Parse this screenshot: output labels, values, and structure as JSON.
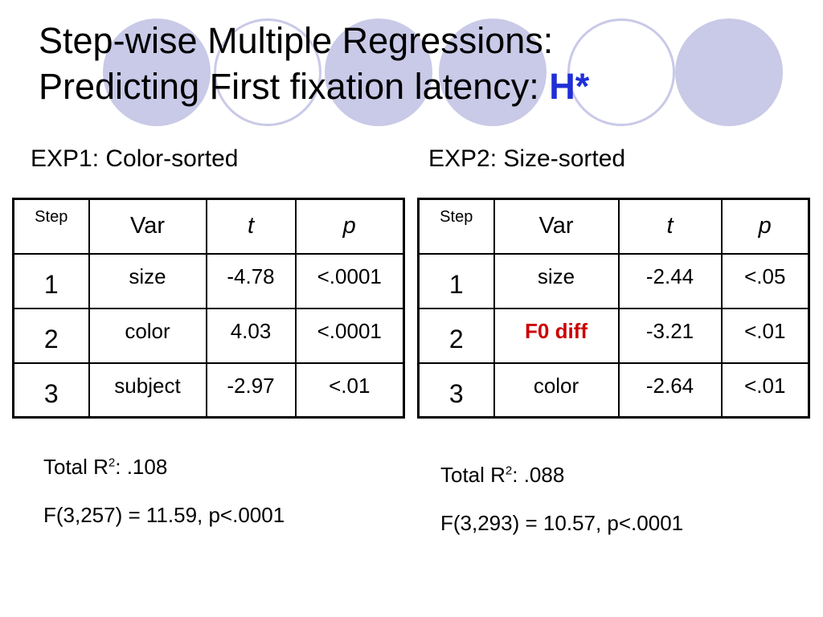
{
  "slide": {
    "title_line1": "Step-wise Multiple Regressions:",
    "title_line2": "Predicting First fixation latency: ",
    "title_accent": "H*"
  },
  "columns": {
    "step": "Step",
    "var": "Var",
    "t": "t",
    "p": "p"
  },
  "exp1": {
    "heading": "EXP1: Color-sorted",
    "rows": [
      {
        "step": "1",
        "var": "size",
        "t": "-4.78",
        "p": "<.0001"
      },
      {
        "step": "2",
        "var": "color",
        "t": "4.03",
        "p": "<.0001"
      },
      {
        "step": "3",
        "var": "subject",
        "t": "-2.97",
        "p": "<.01"
      }
    ],
    "r2_prefix": "Total R",
    "r2_sup": "2",
    "r2_suffix": ":  .108",
    "f_stat": "F(3,257) = 11.59, p<.0001"
  },
  "exp2": {
    "heading": "EXP2: Size-sorted",
    "rows": [
      {
        "step": "1",
        "var": "size",
        "t": "-2.44",
        "p": "<.05"
      },
      {
        "step": "2",
        "var": "F0 diff",
        "t": "-3.21",
        "p": "<.01"
      },
      {
        "step": "3",
        "var": "color",
        "t": "-2.64",
        "p": "<.01"
      }
    ],
    "r2_prefix": "Total R",
    "r2_sup": "2",
    "r2_suffix": ":  .088",
    "f_stat": "F(3,293) = 10.57,  p<.0001"
  },
  "colors": {
    "accent_title": "#1f2fd6",
    "highlight_var": "#cc0000",
    "decor_circles": "#c9c9e8"
  }
}
